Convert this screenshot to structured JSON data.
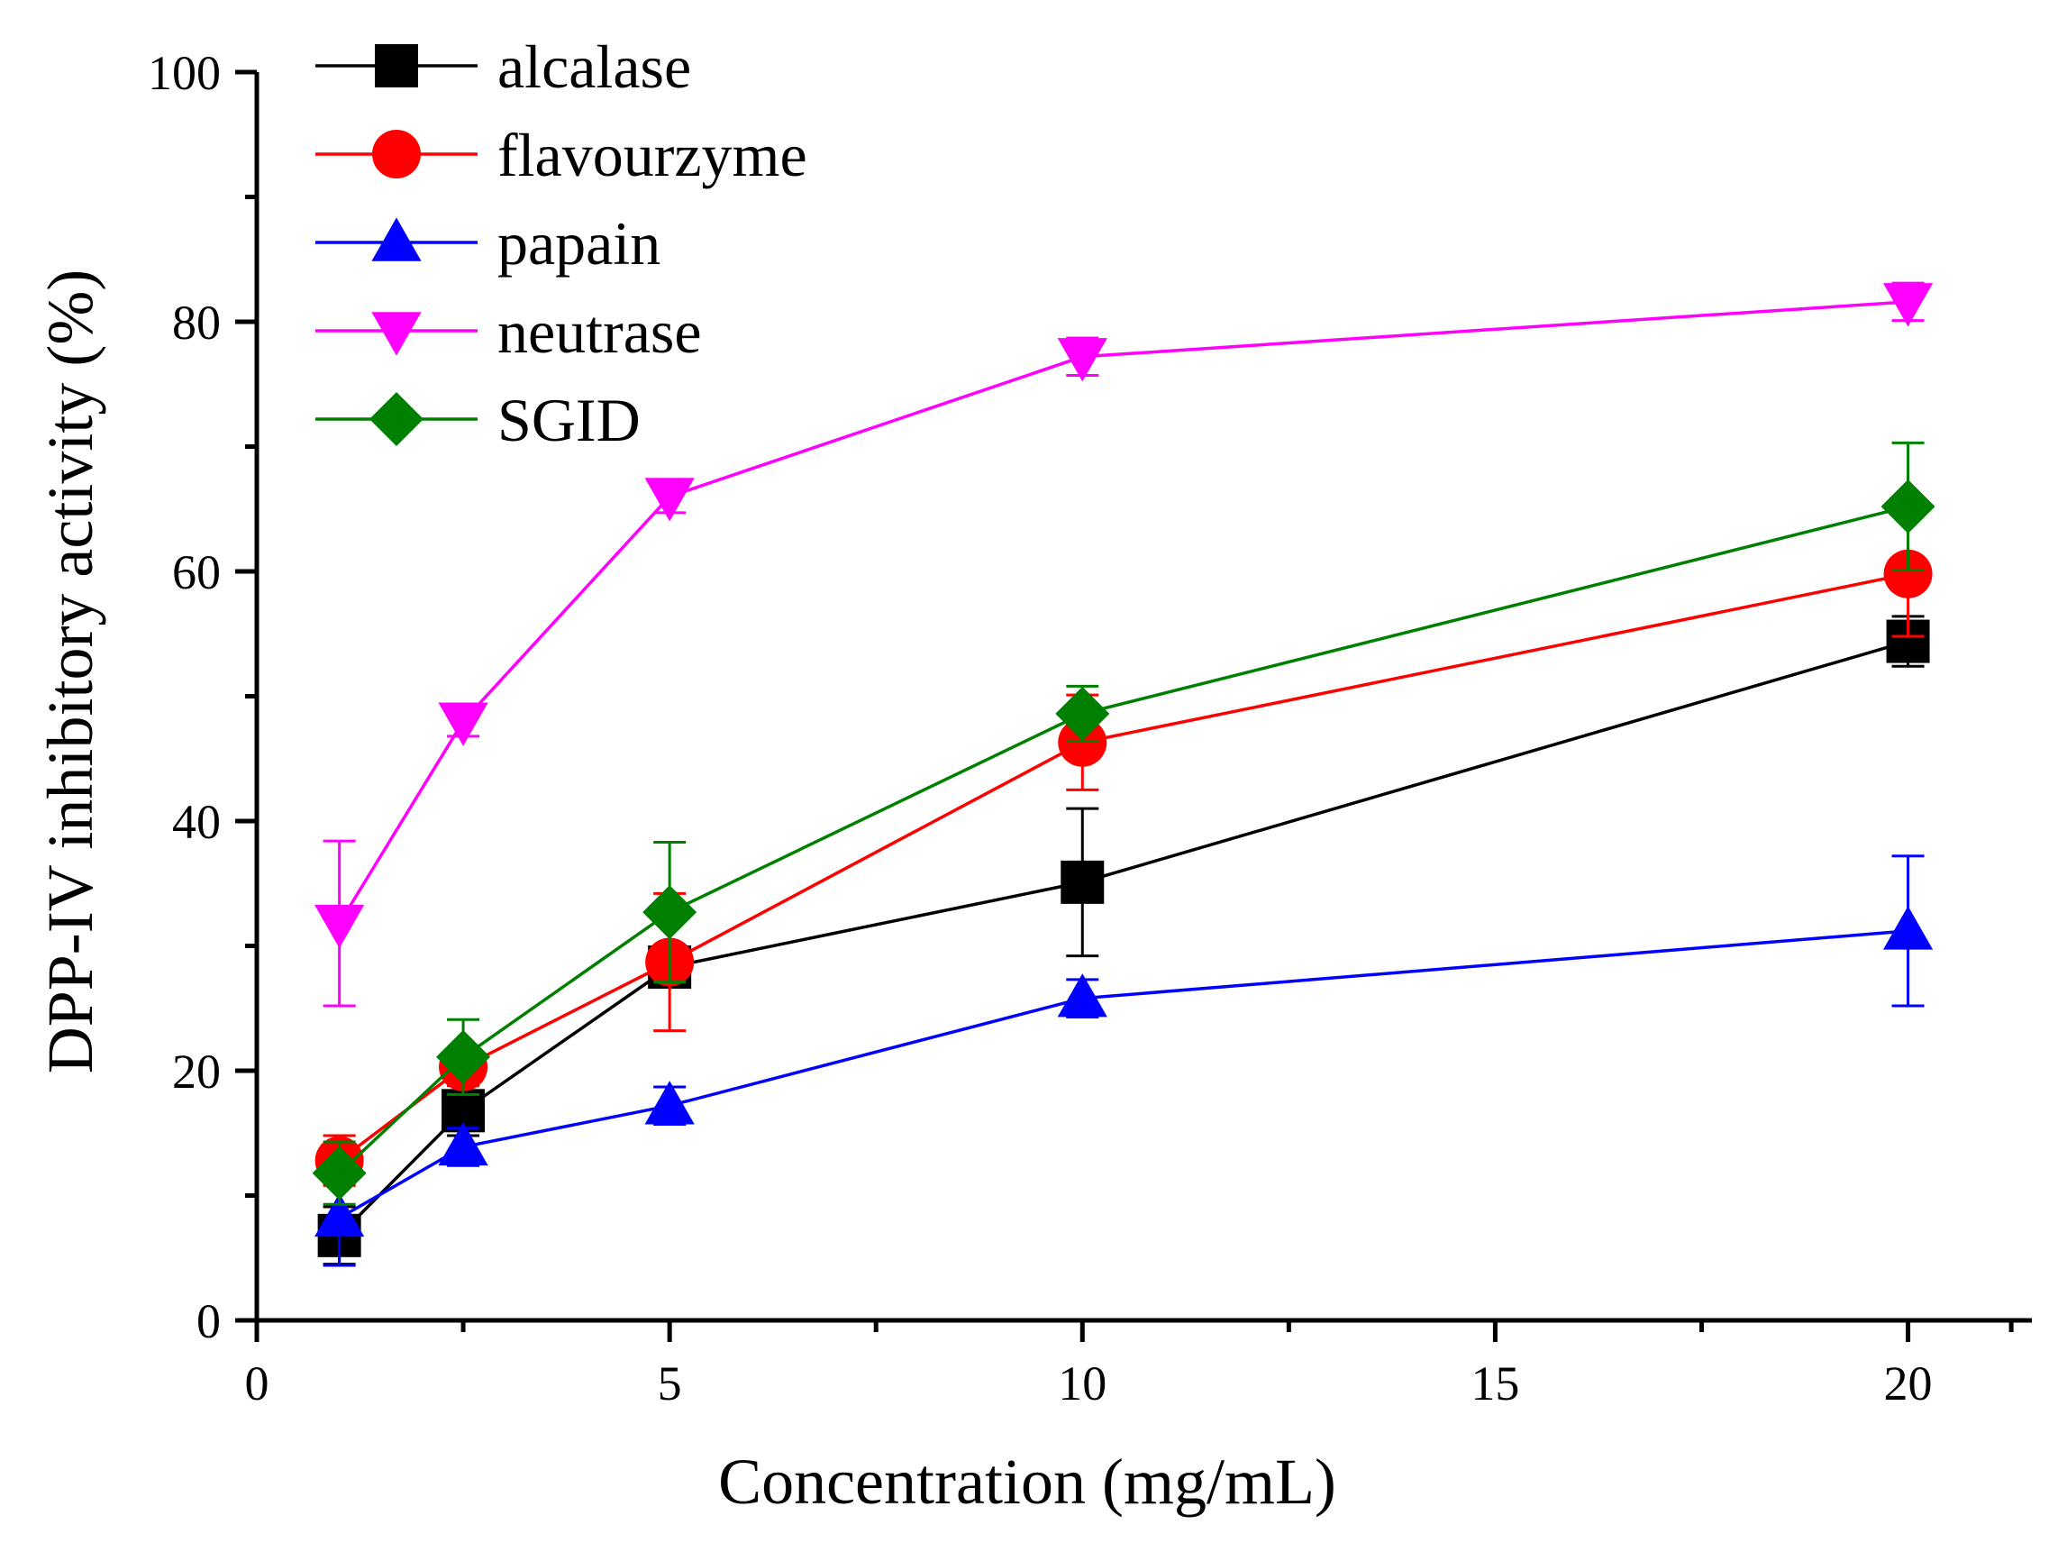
{
  "chart_data": {
    "type": "line",
    "title": "",
    "xlabel": "Concentration (mg/mL)",
    "ylabel": "DPP-IV inhibitory activity (%)",
    "xlim": [
      0,
      21.5
    ],
    "ylim": [
      0,
      100
    ],
    "xticks": [
      0,
      5,
      10,
      15,
      20
    ],
    "xtick_labels": [
      "0",
      "5",
      "10",
      "15",
      "20"
    ],
    "yticks": [
      0,
      20,
      40,
      60,
      80,
      100
    ],
    "ytick_labels": [
      "0",
      "20",
      "40",
      "60",
      "80",
      "100"
    ],
    "grid": false,
    "legend_position": "top-left",
    "x": [
      1,
      2.5,
      5,
      10,
      20
    ],
    "series": [
      {
        "name": "alcalase",
        "color": "#000000",
        "marker": "square",
        "values": [
          6.8,
          16.8,
          28.3,
          35.1,
          54.4
        ],
        "errors": [
          2.3,
          2.0,
          1.3,
          5.9,
          2.0
        ]
      },
      {
        "name": "flavourzyme",
        "color": "#ff0000",
        "marker": "circle",
        "values": [
          12.8,
          20.3,
          28.7,
          46.3,
          59.8
        ],
        "errors": [
          2.0,
          1.5,
          5.5,
          3.8,
          5.0
        ]
      },
      {
        "name": "papain",
        "color": "#0000ff",
        "marker": "triangle-up",
        "values": [
          8.2,
          13.9,
          17.2,
          25.8,
          31.2
        ],
        "errors": [
          3.8,
          1.5,
          1.5,
          1.5,
          6.0
        ]
      },
      {
        "name": "neutrase",
        "color": "#ff00ff",
        "marker": "triangle-down",
        "values": [
          31.8,
          48.0,
          66.0,
          77.2,
          81.6
        ],
        "errors": [
          6.6,
          1.2,
          1.3,
          1.5,
          1.5
        ]
      },
      {
        "name": "SGID",
        "color": "#008000",
        "marker": "diamond",
        "values": [
          11.8,
          21.1,
          32.7,
          48.6,
          65.2
        ],
        "errors": [
          2.5,
          3.0,
          5.6,
          2.2,
          5.1
        ]
      }
    ]
  }
}
